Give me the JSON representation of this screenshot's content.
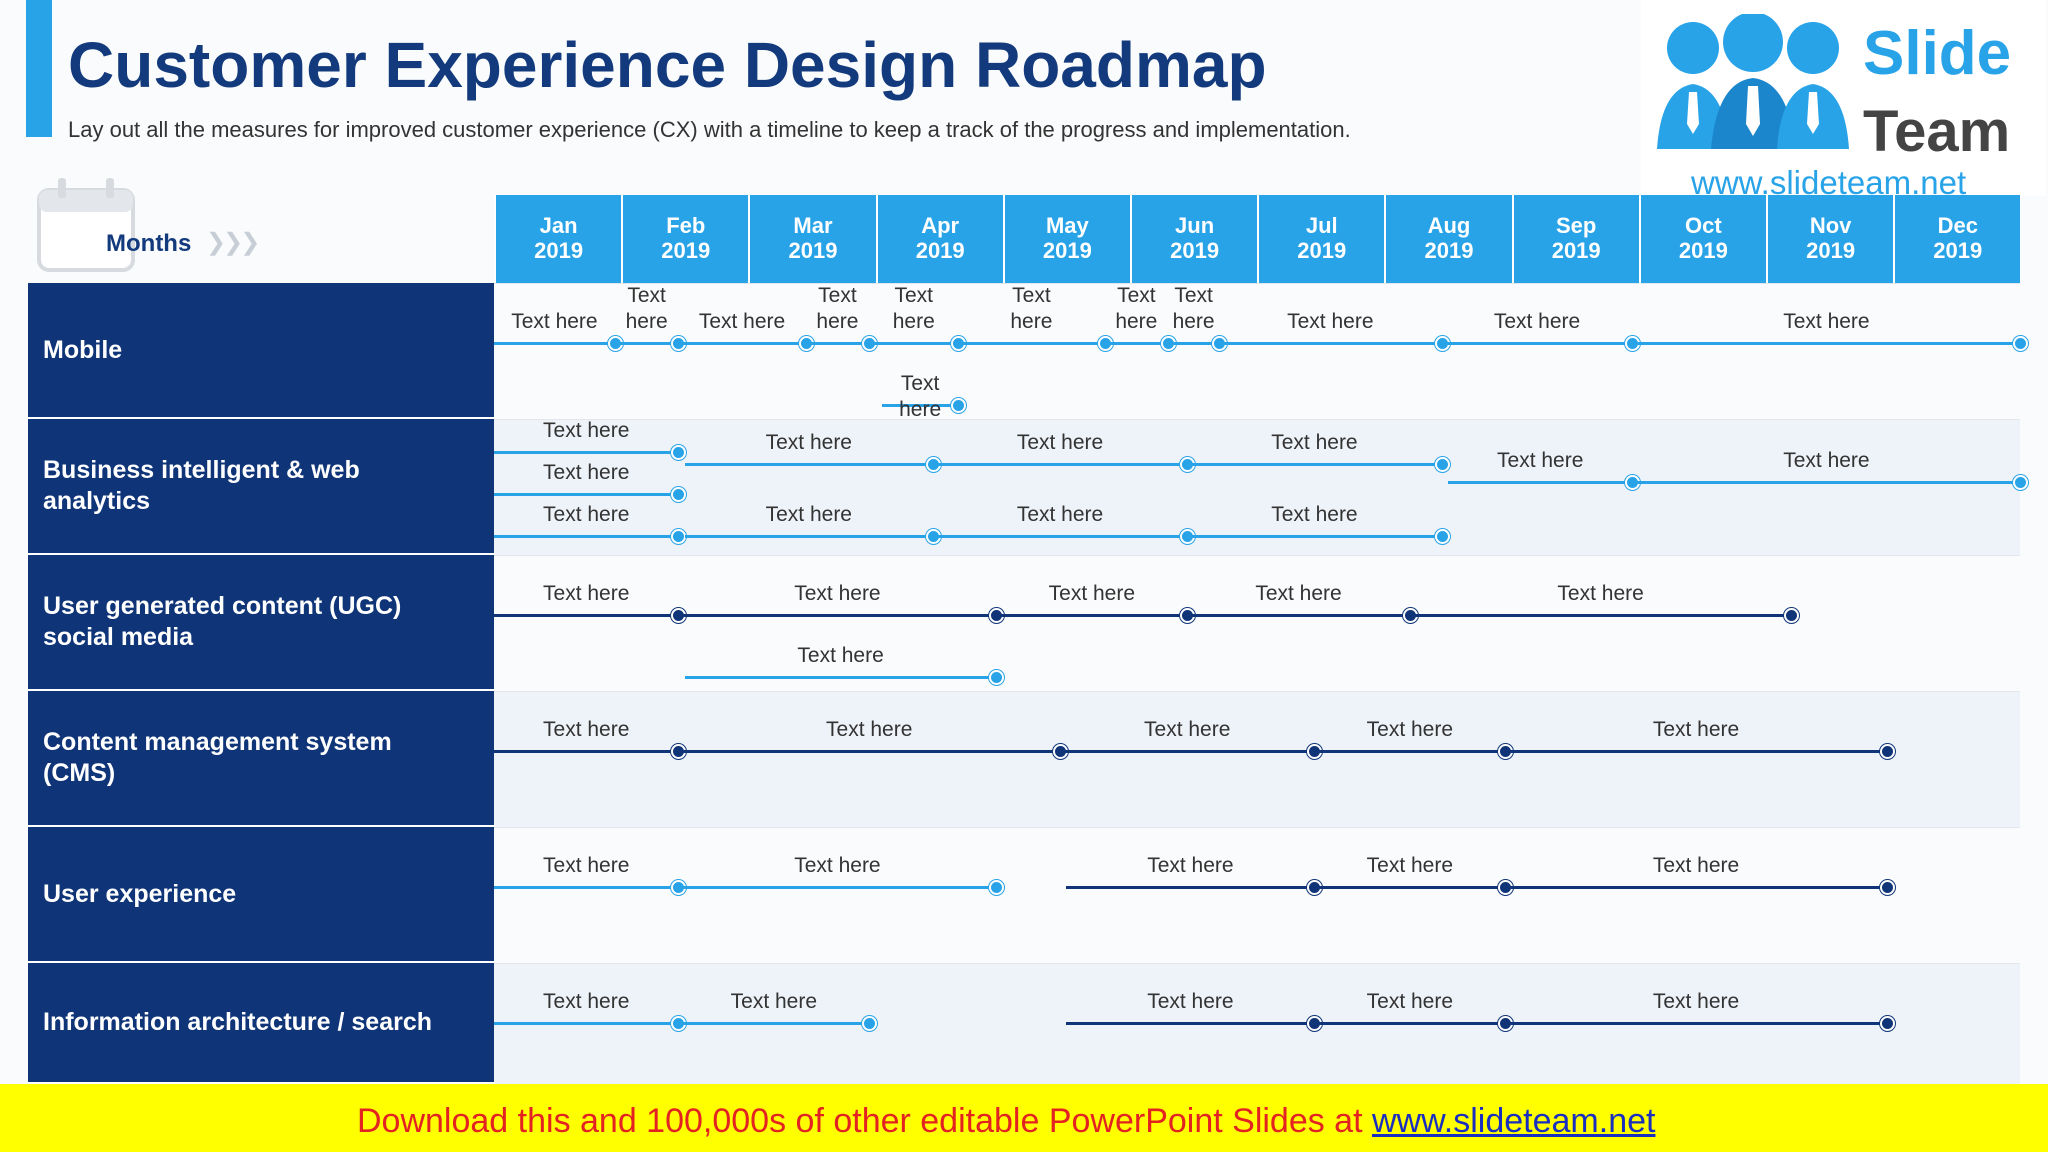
{
  "header": {
    "title": "Customer Experience Design Roadmap",
    "subtitle": "Lay out all the measures for improved customer experience (CX) with a timeline to keep a track of the progress and implementation."
  },
  "logo": {
    "line1": "Slide",
    "line2": "Team",
    "url": "www.slideteam.net"
  },
  "months_label": "Months",
  "months": [
    "Jan\n2019",
    "Feb\n2019",
    "Mar\n2019",
    "Apr\n2019",
    "May\n2019",
    "Jun\n2019",
    "Jul\n2019",
    "Aug\n2019",
    "Sep\n2019",
    "Oct\n2019",
    "Nov\n2019",
    "Dec\n2019"
  ],
  "colors": {
    "light": "#29a3e8",
    "dark": "#0f3478",
    "row_label_bg": "#0f3478",
    "header_bg": "#29a3e8"
  },
  "rows": [
    {
      "label": "Mobile",
      "segments": [
        {
          "from": 0,
          "to": 0.95,
          "lane": "top",
          "color": "light",
          "text": "Text here"
        },
        {
          "from": 0.95,
          "to": 1.45,
          "lane": "top",
          "color": "light",
          "text": "Text\nhere"
        },
        {
          "from": 1.45,
          "to": 2.45,
          "lane": "top",
          "color": "light",
          "text": "Text here"
        },
        {
          "from": 2.45,
          "to": 2.95,
          "lane": "top",
          "color": "light",
          "text": "Text\nhere"
        },
        {
          "from": 2.95,
          "to": 3.65,
          "lane": "top",
          "color": "light",
          "text": "Text\nhere"
        },
        {
          "from": 3.65,
          "to": 4.8,
          "lane": "top",
          "color": "light",
          "text": "Text\nhere"
        },
        {
          "from": 4.8,
          "to": 5.3,
          "lane": "top",
          "color": "light",
          "text": "Text\nhere"
        },
        {
          "from": 5.3,
          "to": 5.7,
          "lane": "top",
          "color": "light",
          "text": "Text\nhere"
        },
        {
          "from": 5.7,
          "to": 7.45,
          "lane": "top",
          "color": "light",
          "text": "Text here"
        },
        {
          "from": 7.45,
          "to": 8.95,
          "lane": "top",
          "color": "light",
          "text": "Text here"
        },
        {
          "from": 8.95,
          "to": 12.0,
          "lane": "top",
          "color": "light",
          "text": "Text here"
        },
        {
          "from": 3.05,
          "to": 3.65,
          "lane": "bottom",
          "color": "light",
          "text": "Text here"
        }
      ]
    },
    {
      "label": "Business intelligent & web analytics",
      "segments": [
        {
          "from": 0,
          "to": 1.45,
          "lane": "l1",
          "color": "light",
          "text": "Text here"
        },
        {
          "from": 1.5,
          "to": 3.45,
          "lane": "l1b",
          "color": "light",
          "text": "Text here"
        },
        {
          "from": 3.45,
          "to": 5.45,
          "lane": "l1b",
          "color": "light",
          "text": "Text here"
        },
        {
          "from": 5.45,
          "to": 7.45,
          "lane": "l1b",
          "color": "light",
          "text": "Text here"
        },
        {
          "from": 0,
          "to": 1.45,
          "lane": "l2",
          "color": "light",
          "text": "Text here"
        },
        {
          "from": 7.5,
          "to": 8.95,
          "lane": "l2b",
          "color": "light",
          "text": "Text here"
        },
        {
          "from": 8.95,
          "to": 12.0,
          "lane": "l2b",
          "color": "light",
          "text": "Text here"
        },
        {
          "from": 0,
          "to": 1.45,
          "lane": "l3",
          "color": "light",
          "text": "Text here"
        },
        {
          "from": 1.5,
          "to": 3.45,
          "lane": "l3",
          "color": "light",
          "text": "Text here"
        },
        {
          "from": 3.45,
          "to": 5.45,
          "lane": "l3",
          "color": "light",
          "text": "Text here"
        },
        {
          "from": 5.45,
          "to": 7.45,
          "lane": "l3",
          "color": "light",
          "text": "Text here"
        }
      ]
    },
    {
      "label": "User generated content (UGC) social media",
      "segments": [
        {
          "from": 0,
          "to": 1.45,
          "lane": "top",
          "color": "dark",
          "text": "Text here"
        },
        {
          "from": 1.45,
          "to": 3.95,
          "lane": "top",
          "color": "dark",
          "text": "Text here"
        },
        {
          "from": 3.95,
          "to": 5.45,
          "lane": "top",
          "color": "dark",
          "text": "Text here"
        },
        {
          "from": 5.45,
          "to": 7.2,
          "lane": "top",
          "color": "dark",
          "text": "Text here"
        },
        {
          "from": 7.2,
          "to": 10.2,
          "lane": "top",
          "color": "dark",
          "text": "Text here"
        },
        {
          "from": 1.5,
          "to": 3.95,
          "lane": "bottom",
          "color": "light",
          "text": "Text here"
        }
      ]
    },
    {
      "label": "Content management system (CMS)",
      "segments": [
        {
          "from": 0,
          "to": 1.45,
          "lane": "top",
          "color": "dark",
          "text": "Text here"
        },
        {
          "from": 1.45,
          "to": 4.45,
          "lane": "top",
          "color": "dark",
          "text": "Text here"
        },
        {
          "from": 4.45,
          "to": 6.45,
          "lane": "top",
          "color": "dark",
          "text": "Text here"
        },
        {
          "from": 6.45,
          "to": 7.95,
          "lane": "top",
          "color": "dark",
          "text": "Text here"
        },
        {
          "from": 7.95,
          "to": 10.95,
          "lane": "top",
          "color": "dark",
          "text": "Text here"
        }
      ]
    },
    {
      "label": "User experience",
      "segments": [
        {
          "from": 0,
          "to": 1.45,
          "lane": "top",
          "color": "light",
          "text": "Text here"
        },
        {
          "from": 1.45,
          "to": 3.95,
          "lane": "top",
          "color": "light",
          "text": "Text here"
        },
        {
          "from": 4.5,
          "to": 6.45,
          "lane": "top",
          "color": "dark",
          "text": "Text here"
        },
        {
          "from": 6.45,
          "to": 7.95,
          "lane": "top",
          "color": "dark",
          "text": "Text here"
        },
        {
          "from": 7.95,
          "to": 10.95,
          "lane": "top",
          "color": "dark",
          "text": "Text here"
        }
      ]
    },
    {
      "label": "Information architecture / search",
      "segments": [
        {
          "from": 0,
          "to": 1.45,
          "lane": "top",
          "color": "light",
          "text": "Text here"
        },
        {
          "from": 1.45,
          "to": 2.95,
          "lane": "top",
          "color": "light",
          "text": "Text here"
        },
        {
          "from": 4.5,
          "to": 6.45,
          "lane": "top",
          "color": "dark",
          "text": "Text here"
        },
        {
          "from": 6.45,
          "to": 7.95,
          "lane": "top",
          "color": "dark",
          "text": "Text here"
        },
        {
          "from": 7.95,
          "to": 10.95,
          "lane": "top",
          "color": "dark",
          "text": "Text here"
        }
      ]
    }
  ],
  "footer": {
    "text": "Download this and 100,000s of other editable PowerPoint Slides at ",
    "link": "www.slideteam.net"
  }
}
